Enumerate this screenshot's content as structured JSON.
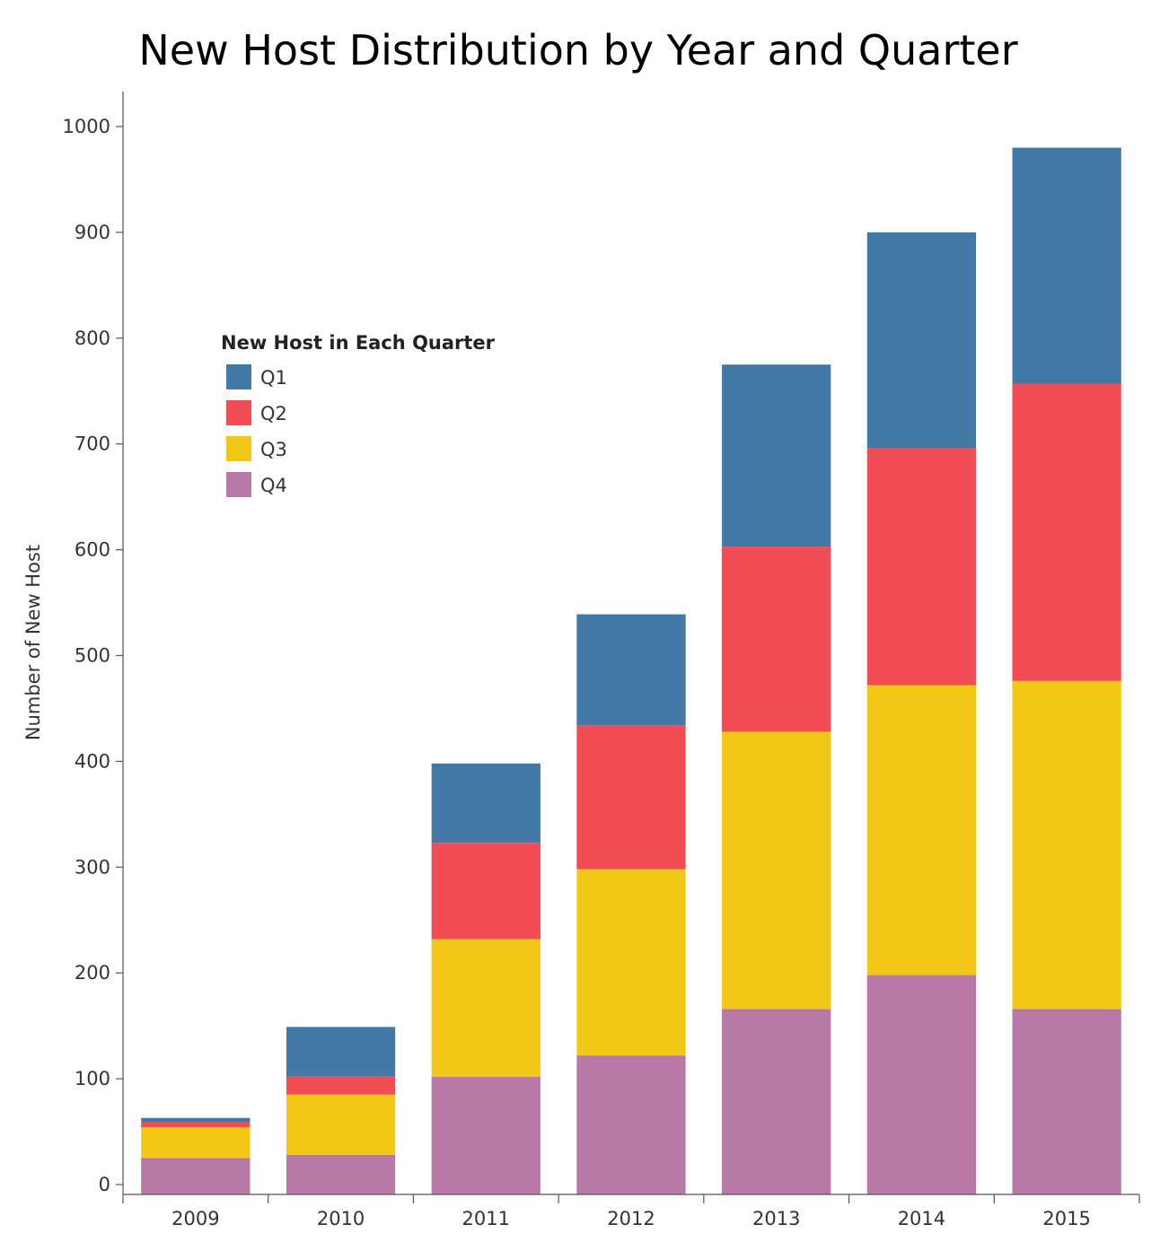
{
  "chart_data": {
    "type": "bar",
    "stacked": true,
    "title": "New Host Distribution by Year and Quarter",
    "ylabel": "Number of New Host",
    "xlabel": "",
    "ylim": [
      0,
      1000
    ],
    "yticks": [
      0,
      100,
      200,
      300,
      400,
      500,
      600,
      700,
      800,
      900,
      1000
    ],
    "categories": [
      "2009",
      "2010",
      "2011",
      "2012",
      "2013",
      "2014",
      "2015"
    ],
    "legend": {
      "title": "New Host in Each Quarter",
      "placement": "upper-left"
    },
    "series": [
      {
        "name": "Q4",
        "color": "#b879a6",
        "values": [
          25,
          28,
          102,
          122,
          166,
          198,
          166
        ]
      },
      {
        "name": "Q3",
        "color": "#f3c716",
        "values": [
          29,
          57,
          130,
          176,
          262,
          274,
          310
        ]
      },
      {
        "name": "Q2",
        "color": "#f24c55",
        "values": [
          5,
          17,
          91,
          136,
          175,
          224,
          281
        ]
      },
      {
        "name": "Q1",
        "color": "#4379a7",
        "values": [
          4,
          47,
          75,
          105,
          172,
          204,
          223
        ]
      }
    ],
    "legend_order": [
      "Q1",
      "Q2",
      "Q3",
      "Q4"
    ],
    "grid": false
  }
}
